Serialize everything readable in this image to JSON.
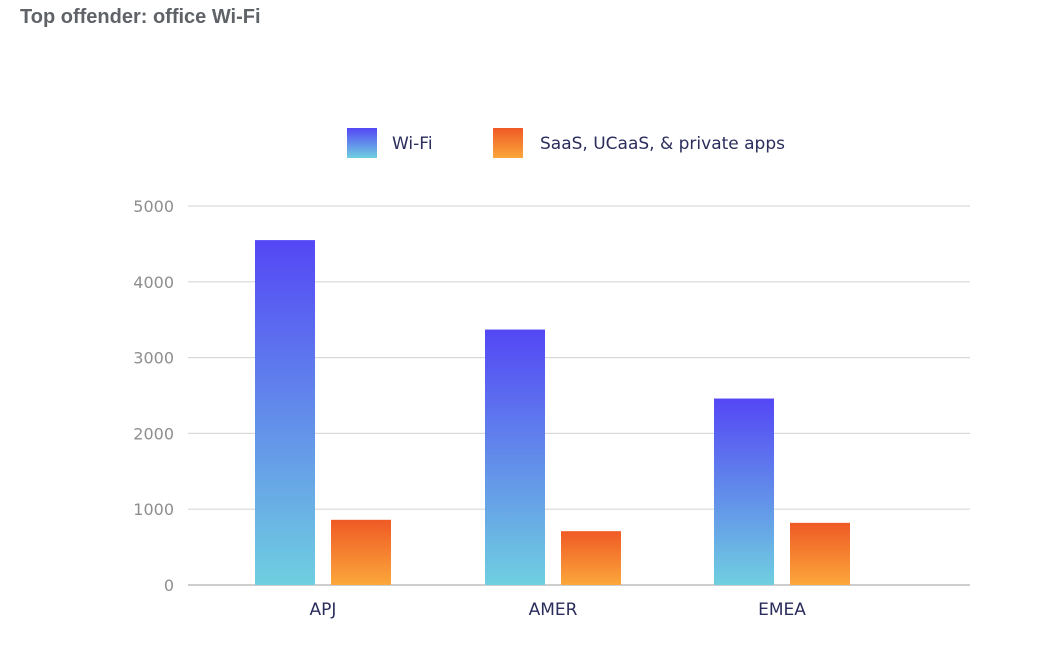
{
  "page": {
    "title": "Top offender: office Wi-Fi"
  },
  "chart_data": {
    "type": "bar",
    "title": "",
    "xlabel": "",
    "ylabel": "",
    "categories": [
      "APJ",
      "AMER",
      "EMEA"
    ],
    "series": [
      {
        "name": "Wi-Fi",
        "values": [
          4550,
          3370,
          2460
        ],
        "gradient_top": "#5447f5",
        "gradient_bottom": "#6fcfe0"
      },
      {
        "name": "SaaS, UCaaS, & private apps",
        "values": [
          860,
          710,
          820
        ],
        "gradient_top": "#ef5a25",
        "gradient_bottom": "#fba73b"
      }
    ],
    "ylim": [
      0,
      5000
    ],
    "yticks": [
      0,
      1000,
      2000,
      3000,
      4000,
      5000
    ],
    "grid": true,
    "legend_position": "top-center",
    "colors": {
      "grid": "#d9d9d9",
      "tick_text": "#8e8e8e",
      "category_text": "#2b2d5c"
    }
  }
}
